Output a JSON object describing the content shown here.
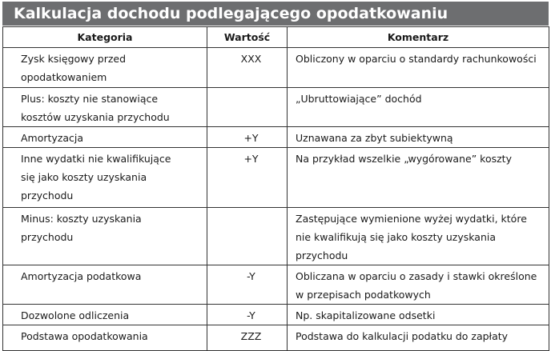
{
  "header": {
    "title": "Kalkulacja dochodu podlegającego opodatkowaniu"
  },
  "table": {
    "columns": [
      "Kategoria",
      "Wartość",
      "Komentarz"
    ],
    "rows": [
      [
        "Zysk księgowy przed opodatkowaniem",
        "XXX",
        "Obliczony w oparciu o standardy rachunkowości"
      ],
      [
        "Plus: koszty nie stanowiące kosztów uzyskania przychodu",
        null,
        "„Ubruttowiające” dochód"
      ],
      [
        "Amortyzacja",
        "+Y",
        "Uznawana za zbyt subiektywną"
      ],
      [
        "Inne wydatki nie kwalifikujące się jako koszty uzyskania przychodu",
        "+Y",
        "Na przykład wszelkie „wygórowane” koszty"
      ],
      [
        "Minus: koszty uzyskania przychodu",
        null,
        "Zastępujące wymienione wyżej wydatki, które nie kwalifikują się jako koszty uzyskania przychodu"
      ],
      [
        "Amortyzacja podatkowa",
        "-Y",
        "Obliczana w oparciu o zasady i stawki określone w przepisach podatkowych"
      ],
      [
        "Dozwolone odliczenia",
        "-Y",
        "Np. skapitalizowane odsetki"
      ],
      [
        "Podstawa opodatkowania",
        "ZZZ",
        "Podstawa do kalkulacji podatku do zapłaty"
      ]
    ]
  }
}
